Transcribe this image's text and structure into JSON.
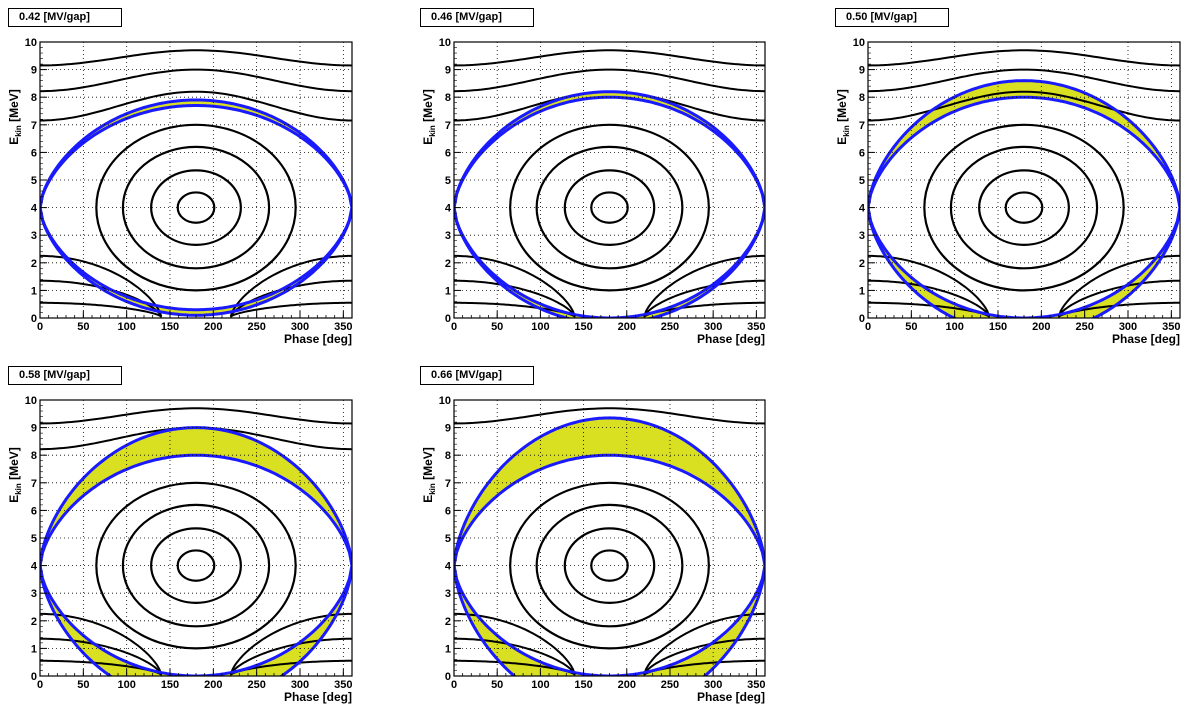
{
  "chart_data": [
    {
      "type": "line",
      "title": "0.42 [MV/gap]",
      "xlabel": "Phase [deg]",
      "ylabel": "E",
      "ylabel_sub": "kin",
      "ylabel_unit": " [MeV]",
      "xlim": [
        0,
        360
      ],
      "ylim": [
        0,
        10
      ],
      "xticks": [
        "0",
        "50",
        "100",
        "150",
        "200",
        "250",
        "300",
        "350"
      ],
      "yticks": [
        "0",
        "1",
        "2",
        "3",
        "4",
        "5",
        "6",
        "7",
        "8",
        "9",
        "10"
      ],
      "grid": true,
      "separatrix": {
        "center": 180,
        "mid_energy": 4,
        "half_width": 180,
        "half_height": 3.9
      },
      "accepted_band": {
        "outer_half_height": 3.9,
        "inner_half_height": 3.7
      },
      "orbits": {
        "closed_half_heights": [
          0.55,
          1.35,
          2.2,
          3.0
        ],
        "open_upper_levels": [
          8.2,
          9.0,
          9.7
        ],
        "open_lower_levels": [
          2.2,
          1.3,
          0.5
        ]
      },
      "colors": {
        "acceptance": "#d9e021",
        "separatrix": "#1a1aff",
        "orbits": "#000000",
        "grid": "#000000"
      }
    },
    {
      "type": "line",
      "title": "0.46 [MV/gap]",
      "xlabel": "Phase [deg]",
      "ylabel": "E",
      "ylabel_sub": "kin",
      "ylabel_unit": " [MeV]",
      "xlim": [
        0,
        360
      ],
      "ylim": [
        0,
        10
      ],
      "xticks": [
        "0",
        "50",
        "100",
        "150",
        "200",
        "250",
        "300",
        "350"
      ],
      "yticks": [
        "0",
        "1",
        "2",
        "3",
        "4",
        "5",
        "6",
        "7",
        "8",
        "9",
        "10"
      ],
      "grid": true,
      "separatrix": {
        "center": 180,
        "mid_energy": 4,
        "half_width": 180,
        "half_height": 4.2
      },
      "accepted_band": {
        "outer_half_height": 4.2,
        "inner_half_height": 4.0
      },
      "orbits": {
        "closed_half_heights": [
          0.55,
          1.35,
          2.2,
          3.0
        ],
        "open_upper_levels": [
          8.2,
          9.0,
          9.7
        ],
        "open_lower_levels": [
          2.2,
          1.3,
          0.5
        ]
      },
      "colors": {
        "acceptance": "#d9e021",
        "separatrix": "#1a1aff",
        "orbits": "#000000",
        "grid": "#000000"
      }
    },
    {
      "type": "line",
      "title": "0.50 [MV/gap]",
      "xlabel": "Phase [deg]",
      "ylabel": "E",
      "ylabel_sub": "kin",
      "ylabel_unit": " [MeV]",
      "xlim": [
        0,
        360
      ],
      "ylim": [
        0,
        10
      ],
      "xticks": [
        "0",
        "50",
        "100",
        "150",
        "200",
        "250",
        "300",
        "350"
      ],
      "yticks": [
        "0",
        "1",
        "2",
        "3",
        "4",
        "5",
        "6",
        "7",
        "8",
        "9",
        "10"
      ],
      "grid": true,
      "separatrix": {
        "center": 180,
        "mid_energy": 4,
        "half_width": 180,
        "half_height": 4.6
      },
      "accepted_band": {
        "outer_half_height": 4.6,
        "inner_half_height": 4.0
      },
      "orbits": {
        "closed_half_heights": [
          0.55,
          1.35,
          2.2,
          3.0
        ],
        "open_upper_levels": [
          8.2,
          9.0,
          9.7
        ],
        "open_lower_levels": [
          2.2,
          1.3,
          0.5
        ]
      },
      "colors": {
        "acceptance": "#d9e021",
        "separatrix": "#1a1aff",
        "orbits": "#000000",
        "grid": "#000000"
      }
    },
    {
      "type": "line",
      "title": "0.58 [MV/gap]",
      "xlabel": "Phase [deg]",
      "ylabel": "E",
      "ylabel_sub": "kin",
      "ylabel_unit": " [MeV]",
      "xlim": [
        0,
        360
      ],
      "ylim": [
        0,
        10
      ],
      "xticks": [
        "0",
        "50",
        "100",
        "150",
        "200",
        "250",
        "300",
        "350"
      ],
      "yticks": [
        "0",
        "1",
        "2",
        "3",
        "4",
        "5",
        "6",
        "7",
        "8",
        "9",
        "10"
      ],
      "grid": true,
      "separatrix": {
        "center": 180,
        "mid_energy": 4,
        "half_width": 180,
        "half_height": 5.0
      },
      "accepted_band": {
        "outer_half_height": 5.0,
        "inner_half_height": 4.0
      },
      "orbits": {
        "closed_half_heights": [
          0.55,
          1.35,
          2.2,
          3.0
        ],
        "open_upper_levels": [
          9.0,
          9.7
        ],
        "open_lower_levels": [
          2.2,
          1.3,
          0.5
        ]
      },
      "colors": {
        "acceptance": "#d9e021",
        "separatrix": "#1a1aff",
        "orbits": "#000000",
        "grid": "#000000"
      }
    },
    {
      "type": "line",
      "title": "0.66 [MV/gap]",
      "xlabel": "Phase [deg]",
      "ylabel": "E",
      "ylabel_sub": "kin",
      "ylabel_unit": " [MeV]",
      "xlim": [
        0,
        360
      ],
      "ylim": [
        0,
        10
      ],
      "xticks": [
        "0",
        "50",
        "100",
        "150",
        "200",
        "250",
        "300",
        "350"
      ],
      "yticks": [
        "0",
        "1",
        "2",
        "3",
        "4",
        "5",
        "6",
        "7",
        "8",
        "9",
        "10"
      ],
      "grid": true,
      "separatrix": {
        "center": 180,
        "mid_energy": 4,
        "half_width": 180,
        "half_height": 5.35
      },
      "accepted_band": {
        "outer_half_height": 5.35,
        "inner_half_height": 4.0
      },
      "orbits": {
        "closed_half_heights": [
          0.55,
          1.35,
          2.2,
          3.0
        ],
        "open_upper_levels": [
          9.7
        ],
        "open_lower_levels": [
          2.2,
          1.3,
          0.5
        ]
      },
      "colors": {
        "acceptance": "#d9e021",
        "separatrix": "#1a1aff",
        "orbits": "#000000",
        "grid": "#000000"
      }
    }
  ]
}
